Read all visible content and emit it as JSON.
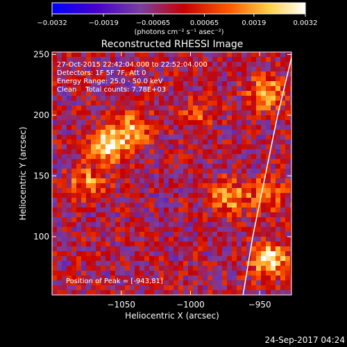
{
  "chart_data": {
    "type": "heatmap",
    "title": "Reconstructed RHESSI Image",
    "xlabel": "Heliocentric X (arcsec)",
    "ylabel": "Heliocentric Y (arcsec)",
    "xlim": [
      -1100,
      -927
    ],
    "ylim": [
      52,
      252
    ],
    "x_ticks": [
      -1050,
      -1000,
      -950
    ],
    "x_tick_labels": [
      "−1050",
      "−1000",
      "−950"
    ],
    "y_ticks": [
      100,
      150,
      200,
      250
    ],
    "y_tick_labels": [
      "100",
      "150",
      "200",
      "250"
    ],
    "colorbar": {
      "range": [
        -0.0032,
        0.0032
      ],
      "ticks": [
        -0.0032,
        -0.0019,
        -0.00065,
        0.00065,
        0.0019,
        0.0032
      ],
      "tick_labels": [
        "−0.0032",
        "−0.0019",
        "−0.00065",
        "0.00065",
        "0.0019",
        "0.0032"
      ],
      "units_label": "(photons cm⁻² s⁻¹ asec⁻²)",
      "colors": [
        "#0000ff",
        "#4400cc",
        "#7a3fa0",
        "#c80000",
        "#ff5a00",
        "#ffd24a",
        "#ffffff"
      ]
    },
    "annotations": [
      "27-Oct-2015 22:42:04.000 to 22:52:04.000",
      "Detectors: 1F 5F 7F, Att 0",
      "Energy Range: 25.0 - 50.0 keV",
      "Clean    Total counts: 7.78E+03"
    ],
    "peak_text": "Position of Peak = [-943,81]",
    "timestamp": "24-Sep-2017 04:24",
    "sources": [
      {
        "x": -1060,
        "y": 175,
        "value": 0.0032
      },
      {
        "x": -1042,
        "y": 188,
        "value": 0.0025
      },
      {
        "x": -1075,
        "y": 145,
        "value": 0.0018
      },
      {
        "x": -943,
        "y": 81,
        "value": 0.0032
      },
      {
        "x": -973,
        "y": 133,
        "value": 0.0022
      },
      {
        "x": -945,
        "y": 135,
        "value": 0.0018
      },
      {
        "x": -945,
        "y": 218,
        "value": 0.0024
      },
      {
        "x": -995,
        "y": 200,
        "value": 0.0012
      }
    ],
    "limb": [
      [
        -962,
        52
      ],
      [
        -955,
        100
      ],
      [
        -946,
        150
      ],
      [
        -937,
        200
      ],
      [
        -926,
        252
      ]
    ]
  }
}
